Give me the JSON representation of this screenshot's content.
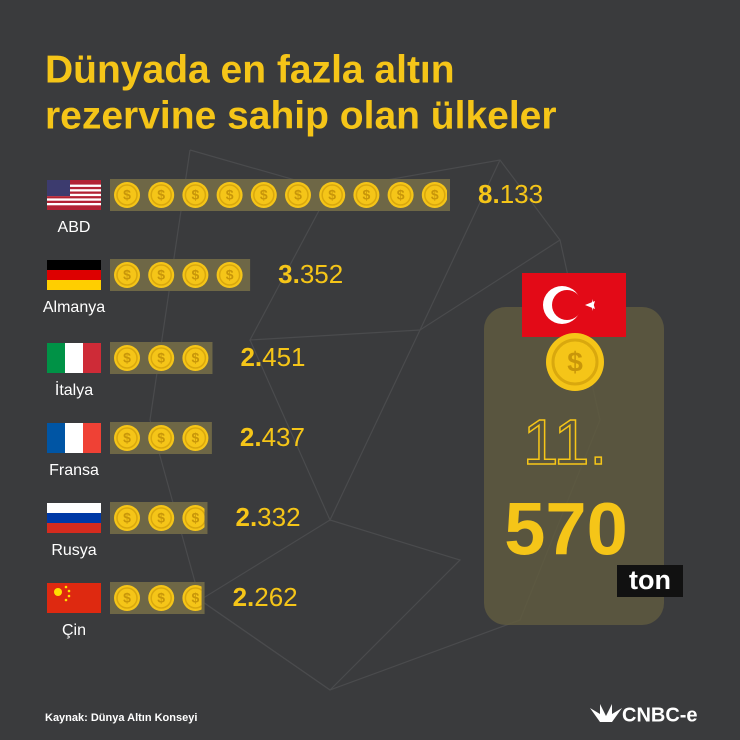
{
  "chart_data": {
    "type": "pictograph",
    "title_lines": [
      "Dünyada en fazla altın",
      "rezervine sahip olan ülkeler"
    ],
    "categories": [
      "ABD",
      "Almanya",
      "İtalya",
      "Fransa",
      "Rusya",
      "Çin"
    ],
    "values": [
      8133,
      3352,
      2451,
      2437,
      2332,
      2262
    ],
    "value_labels": [
      "8.133",
      "3.352",
      "2.451",
      "2.437",
      "2.332",
      "2.262"
    ],
    "color": "#f5c518",
    "highlight": {
      "rank": "11.",
      "value": 570,
      "unit": "ton"
    },
    "source": "Kaynak: Dünya Altın Konseyi",
    "brand": "CNBC-e"
  }
}
